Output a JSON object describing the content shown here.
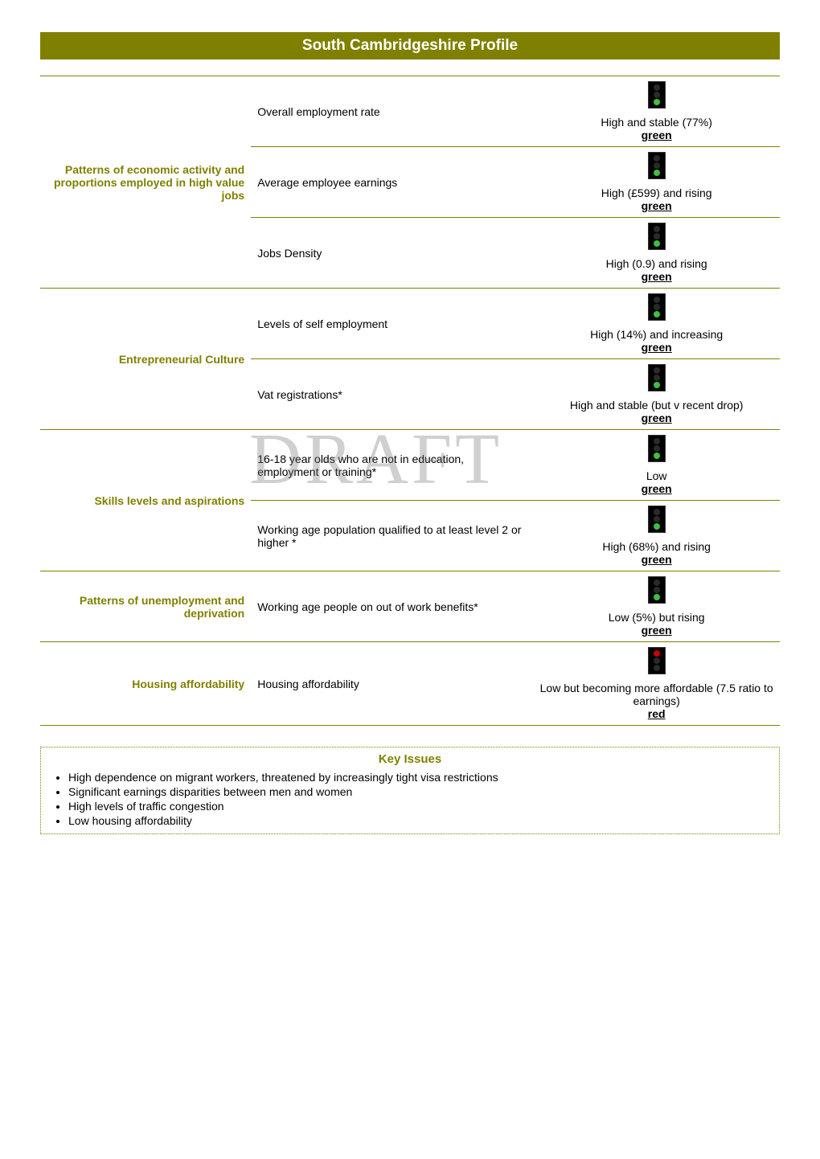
{
  "title": "South Cambridgeshire Profile",
  "watermark": "DRAFT",
  "categories": [
    {
      "name": "Patterns of economic activity and proportions employed in high value jobs",
      "indicators": [
        {
          "label": "Overall employment rate",
          "value_text": "High and stable (77%)",
          "status": "green",
          "light": "green"
        },
        {
          "label": "Average employee earnings",
          "value_text": "High (£599) and rising",
          "status": "green",
          "light": "green"
        },
        {
          "label": "Jobs Density",
          "value_text": "High (0.9) and rising",
          "status": "green",
          "light": "green"
        }
      ]
    },
    {
      "name": "Entrepreneurial Culture",
      "indicators": [
        {
          "label": "Levels of self employment",
          "value_text": "High (14%) and increasing",
          "status": "green",
          "light": "green"
        },
        {
          "label": "Vat registrations*",
          "value_text": "High and stable (but v recent drop)",
          "status": "green",
          "light": "green"
        }
      ]
    },
    {
      "name": "Skills levels and aspirations",
      "indicators": [
        {
          "label": "16-18 year olds who are not in education, employment or training*",
          "value_text": "Low",
          "status": "green",
          "light": "green"
        },
        {
          "label": "Working age population qualified to at least level 2 or higher *",
          "value_text": "High (68%) and rising",
          "status": "green",
          "light": "green"
        }
      ]
    },
    {
      "name": "Patterns of unemployment and deprivation",
      "indicators": [
        {
          "label": "Working age people on out of work benefits*",
          "value_text": "Low (5%) but rising",
          "status": "green",
          "light": "green"
        }
      ]
    },
    {
      "name": "Housing affordability",
      "indicators": [
        {
          "label": "Housing affordability",
          "value_text": "Low but becoming more affordable (7.5 ratio to earnings)",
          "status": "red",
          "light": "red"
        }
      ]
    }
  ],
  "key_issues": {
    "title": "Key Issues",
    "items": [
      "High dependence on migrant workers, threatened by increasingly tight visa restrictions",
      "Significant earnings disparities between men and women",
      "High levels of traffic congestion",
      "Low housing affordability"
    ]
  }
}
